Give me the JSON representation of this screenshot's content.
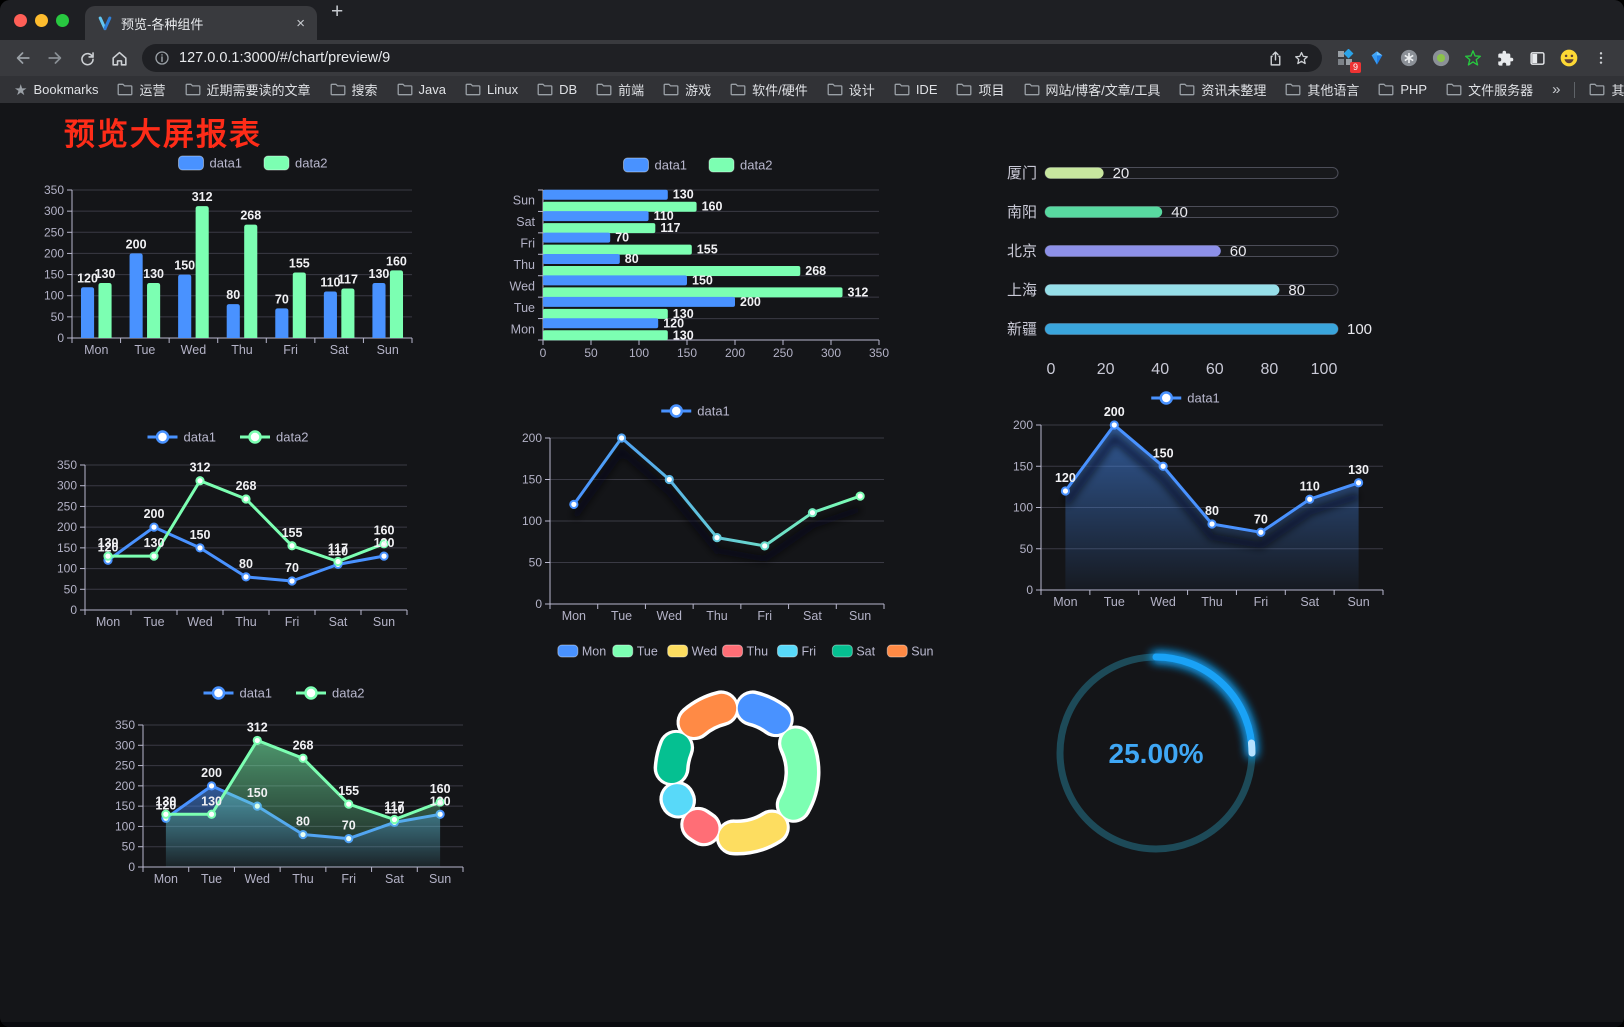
{
  "browser": {
    "traffic_lights": [
      "#ff5f57",
      "#febc2e",
      "#28c840"
    ],
    "tab": {
      "title": "预览-各种组件",
      "close": "×",
      "new_tab": "+"
    },
    "url": "127.0.0.1:3000/#/chart/preview/9",
    "extensions_badge": "9",
    "bookmarks_bar": {
      "star_label": "Bookmarks",
      "folders": [
        "运营",
        "近期需要读的文章",
        "搜索",
        "Java",
        "Linux",
        "DB",
        "前端",
        "游戏",
        "软件/硬件",
        "设计",
        "IDE",
        "项目",
        "网站/博客/文章/工具",
        "资讯未整理",
        "其他语言",
        "PHP",
        "文件服务器"
      ],
      "overflow": "»",
      "other_bookmarks": "其他书签"
    }
  },
  "page": {
    "title": "预览大屏报表",
    "title_color": "#fe2c18",
    "background": "#141518"
  },
  "chart_data": [
    {
      "type": "bar",
      "title": "",
      "legend_position": "top",
      "categories": [
        "Mon",
        "Tue",
        "Wed",
        "Thu",
        "Fri",
        "Sat",
        "Sun"
      ],
      "series": [
        {
          "name": "data1",
          "color": "#4992ff",
          "values": [
            120,
            200,
            150,
            80,
            70,
            110,
            130
          ]
        },
        {
          "name": "data2",
          "color": "#7cffb2",
          "values": [
            130,
            130,
            312,
            268,
            155,
            117,
            160
          ]
        }
      ],
      "ylim": [
        0,
        350
      ],
      "ystep": 50,
      "grid": true,
      "labels": true
    },
    {
      "type": "bar",
      "variant": "horizontal",
      "legend_position": "top",
      "categories": [
        "Mon",
        "Tue",
        "Wed",
        "Thu",
        "Fri",
        "Sat",
        "Sun"
      ],
      "note_axis_order": "Sun at top, Mon at bottom",
      "series": [
        {
          "name": "data1",
          "color": "#4992ff",
          "values": [
            120,
            200,
            150,
            80,
            70,
            110,
            130
          ]
        },
        {
          "name": "data2",
          "color": "#7cffb2",
          "values": [
            130,
            130,
            312,
            268,
            155,
            117,
            160
          ]
        }
      ],
      "xlim": [
        0,
        350
      ],
      "xstep": 50,
      "grid": true,
      "labels": true
    },
    {
      "type": "bar",
      "variant": "progress",
      "categories": [
        "厦门",
        "南阳",
        "北京",
        "上海",
        "新疆"
      ],
      "values": [
        20,
        40,
        60,
        80,
        100
      ],
      "colors": [
        "#c8e79f",
        "#58d9a0",
        "#8d90e8",
        "#96dee8",
        "#3aa5dc"
      ],
      "xlim": [
        0,
        100
      ],
      "xticks": [
        0,
        20,
        40,
        60,
        80,
        100
      ],
      "labels": true
    },
    {
      "type": "line",
      "legend_position": "top",
      "categories": [
        "Mon",
        "Tue",
        "Wed",
        "Thu",
        "Fri",
        "Sat",
        "Sun"
      ],
      "series": [
        {
          "name": "data1",
          "color": "#4992ff",
          "values": [
            120,
            200,
            150,
            80,
            70,
            110,
            130
          ]
        },
        {
          "name": "data2",
          "color": "#7cffb2",
          "values": [
            130,
            130,
            312,
            268,
            155,
            117,
            160
          ]
        }
      ],
      "ylim": [
        0,
        350
      ],
      "ystep": 50,
      "grid": true,
      "labels": true,
      "area": false,
      "shadow": false
    },
    {
      "type": "line",
      "variant": "gradient-stroke",
      "legend_position": "top",
      "categories": [
        "Mon",
        "Tue",
        "Wed",
        "Thu",
        "Fri",
        "Sat",
        "Sun"
      ],
      "series": [
        {
          "name": "data1",
          "color_gradient": [
            "#4992ff",
            "#7cffb2"
          ],
          "values": [
            120,
            200,
            150,
            80,
            70,
            110,
            130
          ]
        }
      ],
      "ylim": [
        0,
        200
      ],
      "ystep": 50,
      "grid": true,
      "labels": false,
      "area": false,
      "shadow": true
    },
    {
      "type": "area",
      "legend_position": "top",
      "categories": [
        "Mon",
        "Tue",
        "Wed",
        "Thu",
        "Fri",
        "Sat",
        "Sun"
      ],
      "series": [
        {
          "name": "data1",
          "color": "#4992ff",
          "values": [
            120,
            200,
            150,
            80,
            70,
            110,
            130
          ]
        }
      ],
      "ylim": [
        0,
        200
      ],
      "ystep": 50,
      "grid": true,
      "labels": true,
      "area": true,
      "shadow": true
    },
    {
      "type": "area",
      "variant": "two-series",
      "legend_position": "top",
      "categories": [
        "Mon",
        "Tue",
        "Wed",
        "Thu",
        "Fri",
        "Sat",
        "Sun"
      ],
      "series": [
        {
          "name": "data1",
          "color": "#4992ff",
          "values": [
            120,
            200,
            150,
            80,
            70,
            110,
            130
          ]
        },
        {
          "name": "data2",
          "color": "#7cffb2",
          "values": [
            130,
            130,
            312,
            268,
            155,
            117,
            160
          ]
        }
      ],
      "ylim": [
        0,
        350
      ],
      "ystep": 50,
      "grid": true,
      "labels": true,
      "area": true,
      "shadow": false
    },
    {
      "type": "pie",
      "variant": "donut",
      "legend_position": "top",
      "categories": [
        "Mon",
        "Tue",
        "Wed",
        "Thu",
        "Fri",
        "Sat",
        "Sun"
      ],
      "values": [
        120,
        200,
        150,
        80,
        70,
        110,
        130
      ],
      "colors": [
        "#4992ff",
        "#7cffb2",
        "#fddd60",
        "#ff6e76",
        "#58d9f9",
        "#05c091",
        "#ff8a45"
      ],
      "segment_border_color": "#ffffff"
    },
    {
      "type": "gauge",
      "value": 25,
      "label": "25.00%",
      "progress_color": "#1aa2f6",
      "track_color": "#1d4a58",
      "text_color": "#3fa7f5"
    }
  ]
}
